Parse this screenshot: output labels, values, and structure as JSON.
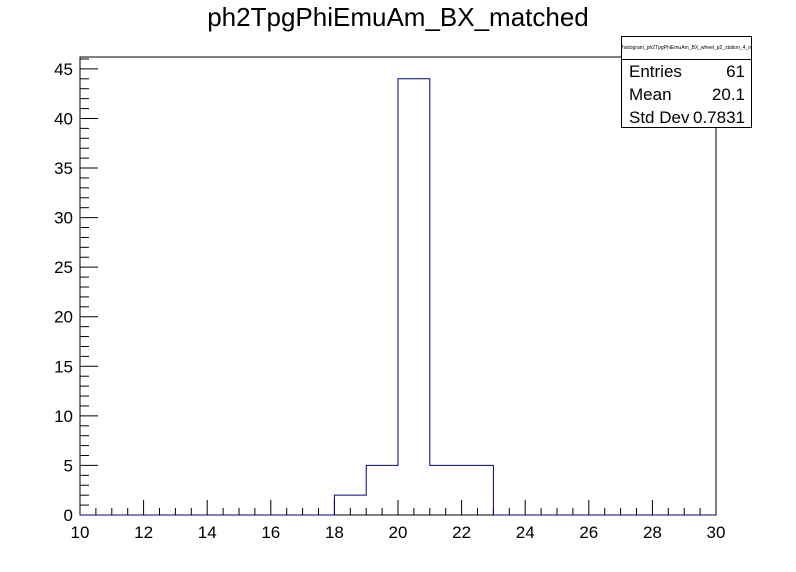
{
  "chart_data": {
    "type": "histogram",
    "title": "ph2TpgPhiEmuAm_BX_matched",
    "xlim": [
      10,
      30
    ],
    "ylim": [
      0,
      46.2
    ],
    "x_ticks": [
      10,
      12,
      14,
      16,
      18,
      20,
      22,
      24,
      26,
      28,
      30
    ],
    "y_ticks": [
      0,
      5,
      10,
      15,
      20,
      25,
      30,
      35,
      40,
      45
    ],
    "bins": [
      {
        "x0": 18,
        "x1": 19,
        "value": 2
      },
      {
        "x0": 19,
        "x1": 20,
        "value": 5
      },
      {
        "x0": 20,
        "x1": 21,
        "value": 44
      },
      {
        "x0": 21,
        "x1": 22,
        "value": 5
      },
      {
        "x0": 22,
        "x1": 23,
        "value": 5
      }
    ],
    "line_color": "#00007f",
    "grid": false
  },
  "stats": {
    "name": "histogram_ph2TpgPhiEmuAm_BX_wheel_p2_station_4_matched",
    "rows": [
      {
        "label": "Entries",
        "value": "61"
      },
      {
        "label": "Mean",
        "value": "20.1"
      },
      {
        "label": "Std Dev",
        "value": "0.7831"
      }
    ]
  }
}
